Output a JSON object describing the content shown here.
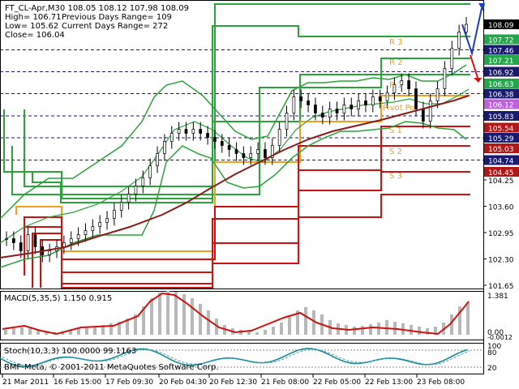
{
  "header": {
    "line1": "FT_CL-Apr,M30  108.05 108.12 107.98 108.09",
    "high": "High= 106.71",
    "prev_range": "Previous Days Range= 109",
    "low": "Low= 105.62",
    "cur_range": "Current Days Range= 272",
    "close": "Close= 106.04"
  },
  "price_scale": [
    "108.09",
    "107.72",
    "107.46",
    "107.21",
    "106.92",
    "106.63",
    "106.38",
    "106.12",
    "105.83",
    "105.54",
    "105.29",
    "105.03",
    "104.74",
    "104.45",
    "104.25",
    "103.60",
    "102.95",
    "102.30",
    "101.65"
  ],
  "price_scale_box_colors": {
    "108.09": "#000000",
    "107.72": "#22a84a",
    "107.46": "#1a1a6e",
    "107.21": "#22a84a",
    "106.92": "#1a1a6e",
    "106.63": "#22a84a",
    "106.38": "#1a1a6e",
    "106.12": "#c060e0",
    "105.83": "#1a1a6e",
    "105.54": "#b01818",
    "105.29": "#1a1a6e",
    "105.03": "#b01818",
    "104.74": "#1a1a6e",
    "104.45": "#b01818"
  },
  "pivot_labels": [
    "R 3",
    "R 2",
    "R 1",
    "Pivot Po",
    "S 1",
    "S 2",
    "S 3"
  ],
  "macd": {
    "label": "MACD(5,35,5) 1.150 0.915",
    "scale": [
      "1.381",
      "0.00",
      "-0.0012"
    ]
  },
  "stoch": {
    "label": "Stoch(10,3,3) 100.0000 99.1163",
    "scale": [
      "100",
      "80",
      "20"
    ]
  },
  "copyright": "BMF-Meta, © 2001-2011 MetaQuotes Software Corp.",
  "time_axis": [
    "21 Mar 2011",
    "16 Feb 15:00",
    "17 Feb 09:30",
    "20 Feb 04:30",
    "20 Feb 12:30",
    "21 Feb 08:00",
    "22 Feb 05:00",
    "22 Feb 13:00",
    "23 Feb 08:00"
  ],
  "colors": {
    "green": "#2aa33a",
    "red": "#cc1111",
    "orange": "#f0a020",
    "dark_red": "#8b1a1a",
    "blue_arrow": "#1c3fb8",
    "red_arrow": "#d81010",
    "gray_bar": "#b8b8b8",
    "stoch_line": "#1a8a8a"
  },
  "chart_data": {
    "type": "candlestick",
    "symbol": "FT_CL-Apr",
    "timeframe": "M30",
    "ohlc_last": [
      108.05,
      108.12,
      107.98,
      108.09
    ],
    "ylim": [
      101.65,
      108.4
    ],
    "close_series": [
      102.8,
      102.7,
      102.5,
      102.9,
      102.6,
      102.4,
      102.5,
      102.6,
      102.7,
      102.8,
      102.9,
      103.0,
      103.1,
      103.2,
      103.3,
      103.5,
      103.7,
      103.9,
      104.1,
      104.3,
      104.6,
      104.9,
      105.2,
      105.4,
      105.5,
      105.4,
      105.5,
      105.4,
      105.3,
      105.2,
      105.1,
      105.0,
      104.9,
      104.8,
      104.9,
      105.0,
      104.8,
      105.1,
      105.5,
      105.9,
      106.3,
      106.2,
      106.1,
      105.9,
      105.8,
      106.0,
      105.9,
      106.1,
      106.0,
      106.2,
      106.1,
      106.3,
      106.2,
      106.4,
      106.6,
      106.7,
      106.5,
      106.0,
      105.7,
      106.2,
      106.5,
      107.0,
      107.5,
      107.9,
      108.09
    ]
  }
}
